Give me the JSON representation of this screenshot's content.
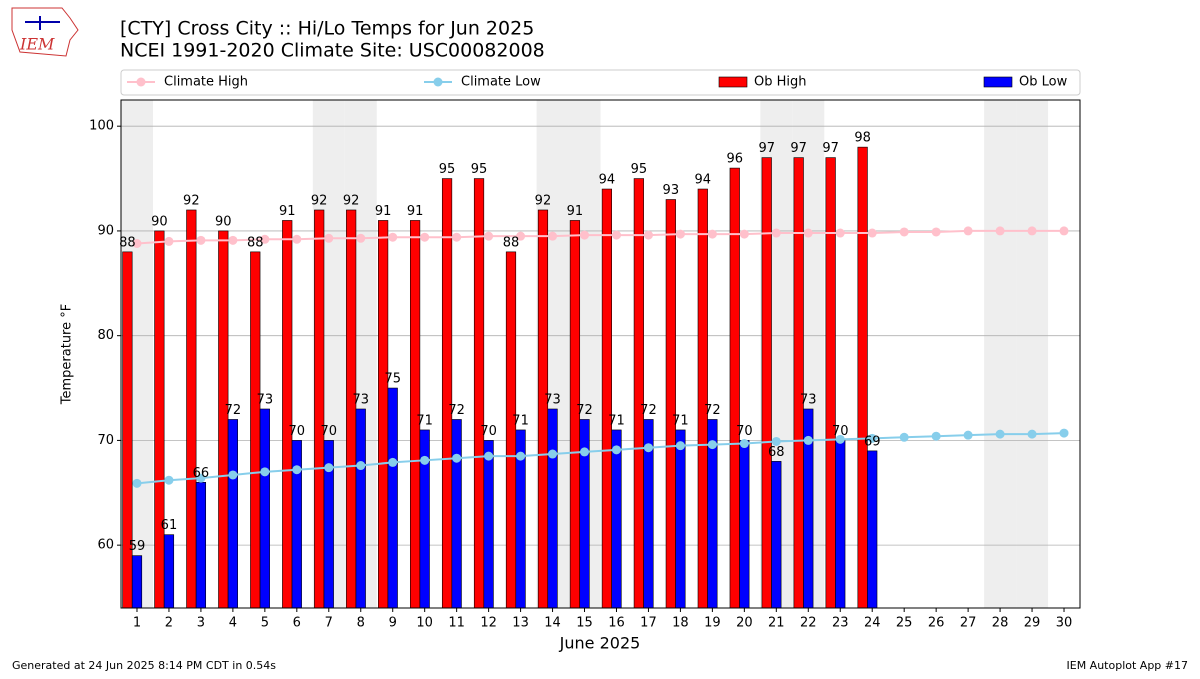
{
  "logo": "IEM",
  "footer": {
    "left": "Generated at 24 Jun 2025 8:14 PM CDT in 0.54s",
    "right": "IEM Autoplot App #17"
  },
  "chart_data": {
    "type": "bar",
    "title": "[CTY] Cross City :: Hi/Lo Temps for Jun 2025",
    "subtitle": "NCEI 1991-2020 Climate Site: USC00082008",
    "x_label": "June 2025",
    "y_label": "Temperature °F",
    "x": [
      1,
      2,
      3,
      4,
      5,
      6,
      7,
      8,
      9,
      10,
      11,
      12,
      13,
      14,
      15,
      16,
      17,
      18,
      19,
      20,
      21,
      22,
      23,
      24,
      25,
      26,
      27,
      28,
      29,
      30
    ],
    "xlim": [
      0.5,
      30.5
    ],
    "xticks": [
      1,
      2,
      3,
      4,
      5,
      6,
      7,
      8,
      9,
      10,
      11,
      12,
      13,
      14,
      15,
      16,
      17,
      18,
      19,
      20,
      21,
      22,
      23,
      24,
      25,
      26,
      27,
      28,
      29,
      30
    ],
    "ylim": [
      54,
      102.5
    ],
    "yticks": [
      60,
      70,
      80,
      90,
      100
    ],
    "grid": true,
    "shaded_days": [
      1,
      7,
      8,
      14,
      15,
      21,
      22,
      28,
      29
    ],
    "series": [
      {
        "name": "Climate High",
        "type": "line",
        "color": "#ffc0cb",
        "values": [
          88.8,
          89.0,
          89.1,
          89.1,
          89.2,
          89.2,
          89.3,
          89.3,
          89.4,
          89.4,
          89.4,
          89.5,
          89.5,
          89.5,
          89.6,
          89.6,
          89.6,
          89.7,
          89.7,
          89.7,
          89.8,
          89.8,
          89.8,
          89.8,
          89.9,
          89.9,
          90.0,
          90.0,
          90.0,
          90.0
        ]
      },
      {
        "name": "Climate Low",
        "type": "line",
        "color": "#87ceeb",
        "values": [
          65.9,
          66.2,
          66.4,
          66.7,
          67.0,
          67.2,
          67.4,
          67.6,
          67.9,
          68.1,
          68.3,
          68.5,
          68.5,
          68.7,
          68.9,
          69.1,
          69.3,
          69.5,
          69.6,
          69.7,
          69.9,
          70.0,
          70.1,
          70.2,
          70.3,
          70.4,
          70.5,
          70.6,
          70.6,
          70.7
        ]
      },
      {
        "name": "Ob High",
        "type": "bar",
        "color": "#ff0000",
        "values": [
          88,
          90,
          92,
          90,
          88,
          91,
          92,
          92,
          91,
          91,
          95,
          95,
          88,
          92,
          91,
          94,
          95,
          93,
          94,
          96,
          97,
          97,
          97,
          98,
          null,
          null,
          null,
          null,
          null,
          null
        ]
      },
      {
        "name": "Ob Low",
        "type": "bar",
        "color": "#0000ff",
        "values": [
          59,
          61,
          66,
          72,
          73,
          70,
          70,
          73,
          75,
          71,
          72,
          70,
          71,
          73,
          72,
          71,
          72,
          71,
          72,
          70,
          68,
          73,
          70,
          69,
          null,
          null,
          null,
          null,
          null,
          null
        ]
      }
    ]
  }
}
